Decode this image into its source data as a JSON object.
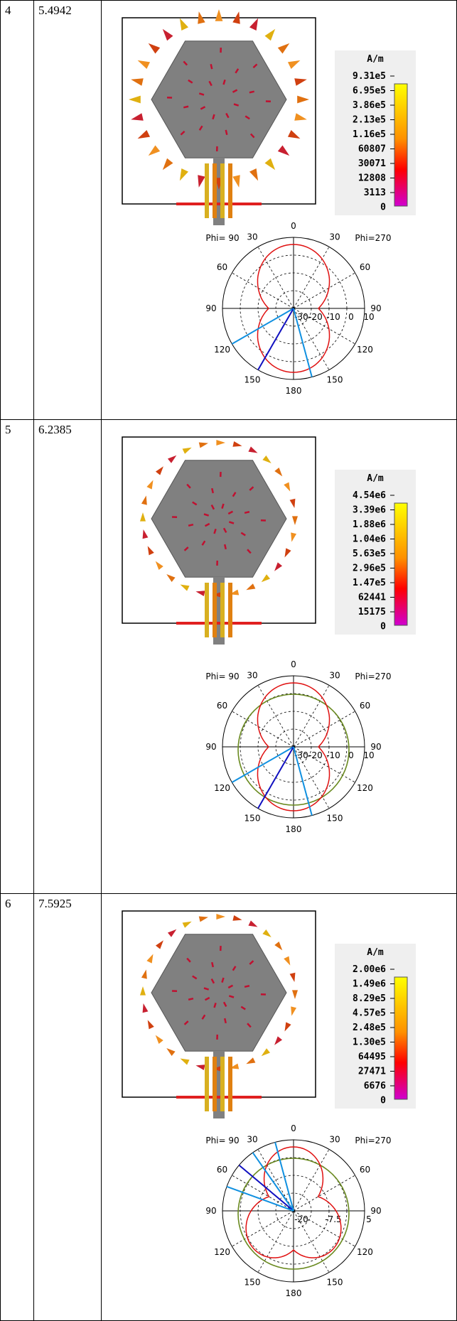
{
  "table": {
    "rows": [
      {
        "index": "4",
        "frequency": "5.4942",
        "current": {
          "unit": "A/m",
          "scale": [
            "9.31e5",
            "6.95e5",
            "3.86e5",
            "2.13e5",
            "1.16e5",
            "60807",
            "30071",
            "12808",
            "3113",
            "0"
          ]
        },
        "pattern": {
          "phi_left": "Phi= 90",
          "phi_right": "Phi=270",
          "angle_labels": [
            "0",
            "30",
            "60",
            "90",
            "120",
            "150",
            "180",
            "150",
            "120",
            "90",
            "60",
            "30"
          ],
          "radial_labels": [
            "-30",
            "-20",
            "-10",
            "0",
            "10"
          ]
        }
      },
      {
        "index": "5",
        "frequency": "6.2385",
        "current": {
          "unit": "A/m",
          "scale": [
            "4.54e6",
            "3.39e6",
            "1.88e6",
            "1.04e6",
            "5.63e5",
            "2.96e5",
            "1.47e5",
            "62441",
            "15175",
            "0"
          ]
        },
        "pattern": {
          "phi_left": "Phi= 90",
          "phi_right": "Phi=270",
          "angle_labels": [
            "0",
            "30",
            "60",
            "90",
            "120",
            "150",
            "180",
            "150",
            "120",
            "90",
            "60",
            "30"
          ],
          "radial_labels": [
            "-30",
            "-20",
            "-10",
            "0",
            "10"
          ]
        }
      },
      {
        "index": "6",
        "frequency": "7.5925",
        "current": {
          "unit": "A/m",
          "scale": [
            "2.00e6",
            "1.49e6",
            "8.29e5",
            "4.57e5",
            "2.48e5",
            "1.30e5",
            "64495",
            "27471",
            "6676",
            "0"
          ]
        },
        "pattern": {
          "phi_left": "Phi= 90",
          "phi_right": "Phi=270",
          "angle_labels": [
            "0",
            "30",
            "60",
            "90",
            "120",
            "150",
            "180",
            "150",
            "120",
            "90",
            "60",
            "30"
          ],
          "radial_labels": [
            "-20",
            "-7.5",
            "5"
          ]
        }
      }
    ]
  }
}
